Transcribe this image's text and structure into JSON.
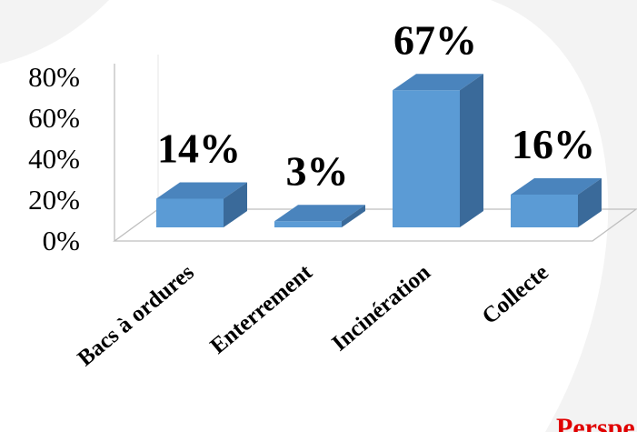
{
  "chart_data": {
    "type": "bar",
    "categories": [
      "Bacs à ordures",
      "Enterrement",
      "Incinération",
      "Collecte"
    ],
    "values": [
      14,
      3,
      67,
      16
    ],
    "data_labels": [
      "14%",
      "3%",
      "67%",
      "16%"
    ],
    "y_ticks": [
      "0%",
      "20%",
      "40%",
      "60%",
      "80%"
    ],
    "ylim": [
      0,
      80
    ],
    "title": "",
    "xlabel": "",
    "ylabel": "",
    "grid": false,
    "legend": "none",
    "bar_colors": {
      "front": "#5b9bd5",
      "top": "#4a84bd",
      "side": "#3a6a9a"
    }
  },
  "partial_text": "Perspe",
  "colors": {
    "partial_text": "#e00000",
    "watermark": "#f3f3f3"
  }
}
